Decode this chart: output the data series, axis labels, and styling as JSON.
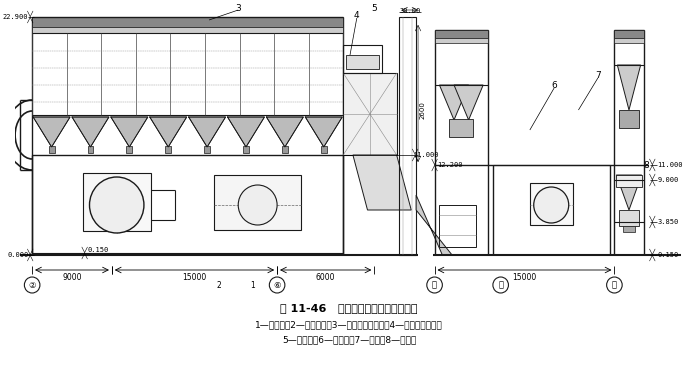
{
  "title": "图 11-46   干燄焦除尘器和风机房布置",
  "caption_line1": "1—消声器；2—除尘风机；3—脉冲袋式除尘器；4—蓄热式冷却器；",
  "caption_line2": "5—平衡阀；6—输灰机；7—灰仓；8—加湿机",
  "bg_color": "#ffffff",
  "lc": "#1a1a1a"
}
